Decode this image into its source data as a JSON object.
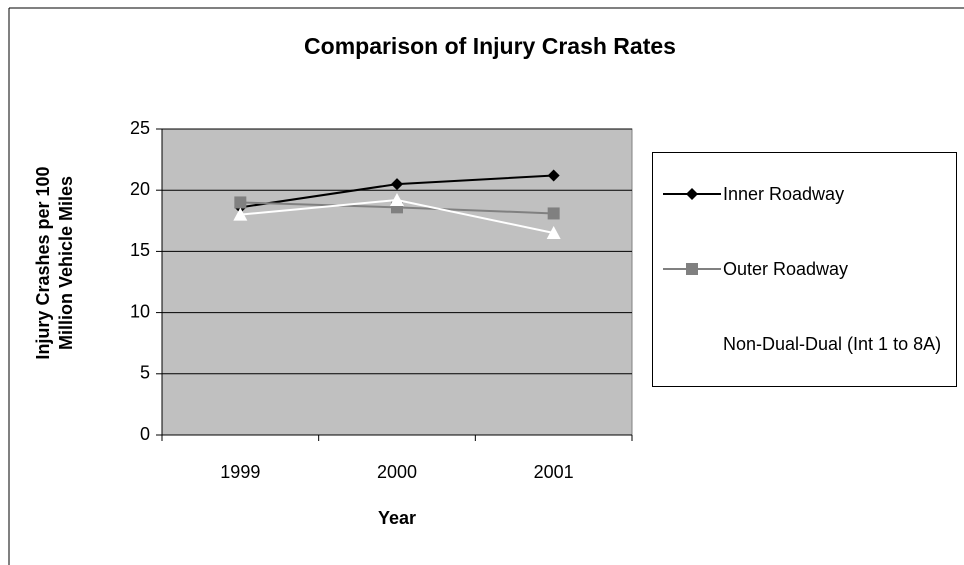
{
  "chart_data": {
    "type": "line",
    "title": "Comparison of Injury Crash Rates",
    "x_label": "Year",
    "y_label": "Injury Crashes per 100 Million Vehicle Miles",
    "categories": [
      "1999",
      "2000",
      "2001"
    ],
    "series": [
      {
        "name": "Inner Roadway",
        "color": "#000000",
        "marker": "diamond",
        "values": [
          18.6,
          20.5,
          21.2
        ]
      },
      {
        "name": "Outer Roadway",
        "color": "#808080",
        "marker": "square",
        "values": [
          19.0,
          18.6,
          18.1
        ]
      },
      {
        "name": "Non-Dual-Dual (Int 1 to 8A)",
        "color": "#ffffff",
        "marker": "triangle",
        "values": [
          18.0,
          19.2,
          16.5
        ]
      }
    ],
    "ylim": [
      0,
      25
    ],
    "yticks": [
      0,
      5,
      10,
      15,
      20,
      25
    ],
    "grid": true,
    "plot_background": "#c0c0c0",
    "legend": "right"
  }
}
